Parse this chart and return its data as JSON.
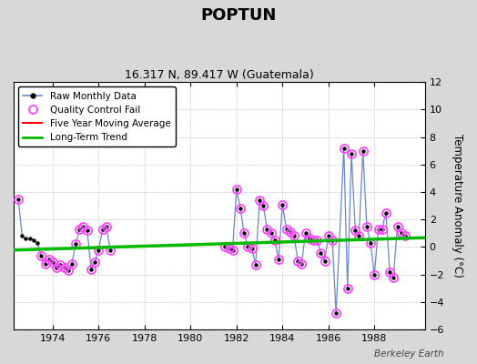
{
  "title": "POPTUN",
  "subtitle": "16.317 N, 89.417 W (Guatemala)",
  "ylabel": "Temperature Anomaly (°C)",
  "watermark": "Berkeley Earth",
  "ylim": [
    -6,
    12
  ],
  "xlim": [
    1972.3,
    1990.2
  ],
  "xticks": [
    1974,
    1976,
    1978,
    1980,
    1982,
    1984,
    1986,
    1988
  ],
  "yticks": [
    -6,
    -4,
    -2,
    0,
    2,
    4,
    6,
    8,
    10,
    12
  ],
  "bg_color": "#d8d8d8",
  "plot_bg_color": "#ffffff",
  "raw_color": "#6688cc",
  "qc_color": "#ff44ff",
  "moving_avg_color": "#ff0000",
  "trend_color": "#00bb00",
  "seg1_x": [
    1972.5,
    1972.67,
    1972.83,
    1973.0,
    1973.17,
    1973.33,
    1973.5,
    1973.67,
    1973.83,
    1974.0,
    1974.17,
    1974.33,
    1974.5,
    1974.67,
    1974.83,
    1975.0,
    1975.17,
    1975.33,
    1975.5,
    1975.67,
    1975.83,
    1976.0,
    1976.17,
    1976.33,
    1976.5
  ],
  "seg1_y": [
    3.5,
    0.8,
    0.6,
    0.6,
    0.5,
    0.3,
    -0.6,
    -1.2,
    -0.9,
    -1.1,
    -1.5,
    -1.3,
    -1.5,
    -1.7,
    -1.2,
    0.2,
    1.3,
    1.5,
    1.2,
    -1.6,
    -1.1,
    -0.2,
    1.3,
    1.5,
    -0.2
  ],
  "seg2_x": [
    1981.5,
    1981.67,
    1981.83,
    1982.0,
    1982.17,
    1982.33,
    1982.5,
    1982.67,
    1982.83,
    1983.0,
    1983.17,
    1983.33,
    1983.5,
    1983.67,
    1983.83,
    1984.0,
    1984.17,
    1984.33,
    1984.5,
    1984.67,
    1984.83,
    1985.0,
    1985.17,
    1985.33,
    1985.5,
    1985.67,
    1985.83,
    1986.0,
    1986.17,
    1986.33,
    1986.67,
    1986.83,
    1987.0,
    1987.17,
    1987.33,
    1987.5,
    1987.67,
    1987.83,
    1988.0,
    1988.17,
    1988.33,
    1988.5,
    1988.67,
    1988.83,
    1989.0,
    1989.17,
    1989.33
  ],
  "seg2_y": [
    0.0,
    -0.1,
    -0.2,
    4.2,
    2.8,
    1.0,
    0.0,
    -0.1,
    -1.3,
    3.4,
    3.0,
    1.3,
    1.0,
    0.5,
    -0.9,
    3.1,
    1.3,
    1.1,
    0.8,
    -1.0,
    -1.2,
    1.0,
    0.6,
    0.5,
    0.5,
    -0.4,
    -1.0,
    0.8,
    0.5,
    -4.8,
    7.2,
    -3.0,
    6.8,
    1.2,
    0.8,
    7.0,
    1.5,
    0.3,
    -2.0,
    1.3,
    1.3,
    2.5,
    -1.8,
    -2.2,
    1.5,
    1.0,
    0.8
  ],
  "qc_x": [
    1972.5,
    1973.5,
    1973.67,
    1973.83,
    1974.0,
    1974.17,
    1974.33,
    1974.5,
    1974.67,
    1974.83,
    1975.0,
    1975.17,
    1975.33,
    1975.5,
    1975.67,
    1975.83,
    1976.0,
    1976.17,
    1976.33,
    1976.5,
    1981.5,
    1981.67,
    1981.83,
    1982.0,
    1982.17,
    1982.33,
    1982.5,
    1982.67,
    1982.83,
    1983.0,
    1983.17,
    1983.33,
    1983.5,
    1983.67,
    1983.83,
    1984.0,
    1984.17,
    1984.33,
    1984.5,
    1984.67,
    1984.83,
    1985.0,
    1985.17,
    1985.33,
    1985.5,
    1985.67,
    1985.83,
    1986.0,
    1986.17,
    1986.33,
    1986.67,
    1986.83,
    1987.0,
    1987.17,
    1987.33,
    1987.5,
    1987.67,
    1987.83,
    1988.0,
    1988.17,
    1988.33,
    1988.5,
    1988.67,
    1988.83,
    1989.0,
    1989.17,
    1989.33
  ],
  "qc_y": [
    3.5,
    -0.6,
    -1.2,
    -0.9,
    -1.1,
    -1.5,
    -1.3,
    -1.5,
    -1.7,
    -1.2,
    0.2,
    1.3,
    1.5,
    1.2,
    -1.6,
    -1.1,
    -0.2,
    1.3,
    1.5,
    -0.2,
    0.0,
    -0.1,
    -0.2,
    4.2,
    2.8,
    1.0,
    0.0,
    -0.1,
    -1.3,
    3.4,
    3.0,
    1.3,
    1.0,
    0.5,
    -0.9,
    3.1,
    1.3,
    1.1,
    0.8,
    -1.0,
    -1.2,
    1.0,
    0.6,
    0.5,
    0.5,
    -0.4,
    -1.0,
    0.8,
    0.5,
    -4.8,
    7.2,
    -3.0,
    6.8,
    1.2,
    0.8,
    7.0,
    1.5,
    0.3,
    -2.0,
    1.3,
    1.3,
    2.5,
    -1.8,
    -2.2,
    1.5,
    1.0,
    0.8
  ],
  "trend_x": [
    1972.3,
    1990.2
  ],
  "trend_y": [
    -0.22,
    0.68
  ]
}
